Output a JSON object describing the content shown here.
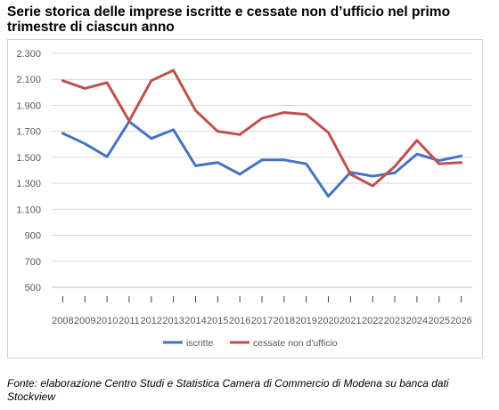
{
  "title": "Serie storica delle imprese iscritte e cessate non d’ufficio nel primo trimestre di ciascun anno",
  "source": "Fonte: elaborazione Centro Studi e Statistica Camera di Commercio di Modena su banca dati Stockview",
  "chart_data": {
    "type": "line",
    "title": "Serie storica delle imprese iscritte e cessate non d’ufficio nel primo trimestre di ciascun anno",
    "xlabel": "",
    "ylabel": "",
    "ylim": [
      500,
      2300
    ],
    "yticks": [
      500,
      700,
      900,
      1100,
      1300,
      1500,
      1700,
      1900,
      2100,
      2300
    ],
    "ytick_labels": [
      "500",
      "700",
      "900",
      "1.100",
      "1.300",
      "1.500",
      "1.700",
      "1.900",
      "2.100",
      "2.300"
    ],
    "grid": "horizontal",
    "legend_position": "bottom",
    "categories": [
      "2008",
      "2009",
      "2010",
      "2011",
      "2012",
      "2013",
      "2014",
      "2015",
      "2016",
      "2017",
      "2018",
      "2019",
      "2020",
      "2021",
      "2022",
      "2023",
      "2024",
      "2025",
      "2026"
    ],
    "series": [
      {
        "name": "iscritte",
        "color": "#4472C4",
        "values": [
          1685,
          1605,
          1505,
          1775,
          1645,
          1712,
          1435,
          1460,
          1370,
          1480,
          1480,
          1450,
          1200,
          1385,
          1355,
          1380,
          1525,
          1475,
          1510
        ]
      },
      {
        "name": "cessate non d'ufficio",
        "color": "#C0504D",
        "values": [
          2090,
          2030,
          2075,
          1780,
          2090,
          2170,
          1860,
          1700,
          1675,
          1800,
          1845,
          1830,
          1690,
          1370,
          1280,
          1430,
          1630,
          1450,
          1460
        ]
      }
    ]
  }
}
